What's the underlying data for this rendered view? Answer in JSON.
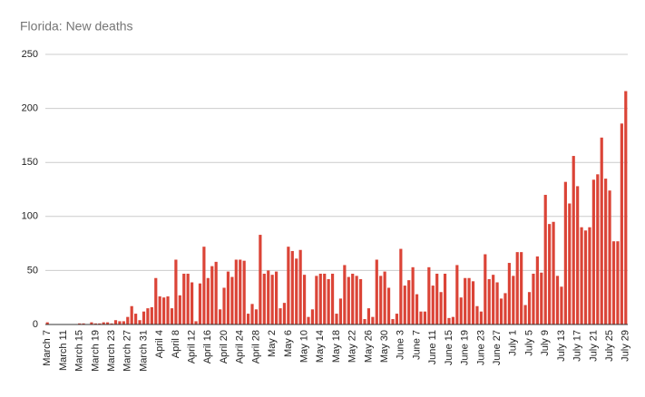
{
  "chart_data": {
    "type": "bar",
    "title": "Florida: New deaths",
    "categories": [
      "March 7",
      null,
      null,
      null,
      "March 11",
      null,
      null,
      null,
      "March 15",
      null,
      null,
      null,
      "March 19",
      null,
      null,
      null,
      "March 23",
      null,
      null,
      null,
      "March 27",
      null,
      null,
      null,
      "March 31",
      null,
      null,
      null,
      "April 4",
      null,
      null,
      null,
      "April 8",
      null,
      null,
      null,
      "April 12",
      null,
      null,
      null,
      "April 16",
      null,
      null,
      null,
      "April 20",
      null,
      null,
      null,
      "April 24",
      null,
      null,
      null,
      "April 28",
      null,
      null,
      null,
      "May 2",
      null,
      null,
      null,
      "May 6",
      null,
      null,
      null,
      "May 10",
      null,
      null,
      null,
      "May 14",
      null,
      null,
      null,
      "May 18",
      null,
      null,
      null,
      "May 22",
      null,
      null,
      null,
      "May 26",
      null,
      null,
      null,
      "May 30",
      null,
      null,
      null,
      "June 3",
      null,
      null,
      null,
      "June 7",
      null,
      null,
      null,
      "June 11",
      null,
      null,
      null,
      "June 15",
      null,
      null,
      null,
      "June 19",
      null,
      null,
      null,
      "June 23",
      null,
      null,
      null,
      "June 27",
      null,
      null,
      null,
      "July 1",
      null,
      null,
      null,
      "July 5",
      null,
      null,
      null,
      "July 9",
      null,
      null,
      null,
      "July 13",
      null,
      null,
      null,
      "July 17",
      null,
      null,
      null,
      "July 21",
      null,
      null,
      null,
      "July 25",
      null,
      null,
      null,
      "July 29"
    ],
    "values": [
      2,
      0,
      0,
      0,
      0,
      0,
      0,
      0,
      1,
      1,
      0,
      2,
      1,
      1,
      2,
      2,
      1,
      4,
      3,
      3,
      7,
      17,
      10,
      4,
      12,
      15,
      16,
      43,
      26,
      25,
      26,
      15,
      60,
      27,
      47,
      47,
      39,
      3,
      38,
      72,
      43,
      54,
      58,
      14,
      34,
      49,
      44,
      60,
      60,
      59,
      10,
      19,
      14,
      83,
      47,
      50,
      46,
      49,
      15,
      20,
      72,
      68,
      61,
      69,
      46,
      7,
      14,
      45,
      47,
      47,
      42,
      47,
      10,
      24,
      55,
      44,
      47,
      45,
      42,
      5,
      15,
      7,
      60,
      45,
      49,
      34,
      5,
      10,
      70,
      36,
      41,
      53,
      28,
      12,
      12,
      53,
      36,
      47,
      30,
      47,
      6,
      7,
      55,
      25,
      43,
      43,
      40,
      17,
      12,
      65,
      42,
      46,
      39,
      24,
      29,
      57,
      45,
      67,
      67,
      18,
      30,
      47,
      63,
      48,
      120,
      93,
      95,
      45,
      35,
      132,
      112,
      156,
      128,
      90,
      87,
      90,
      134,
      139,
      173,
      135,
      124,
      77,
      77,
      186,
      216
    ],
    "color": "#db4437",
    "ylim": [
      0,
      250
    ],
    "yticks": [
      0,
      50,
      100,
      150,
      200,
      250
    ],
    "grid": true
  }
}
